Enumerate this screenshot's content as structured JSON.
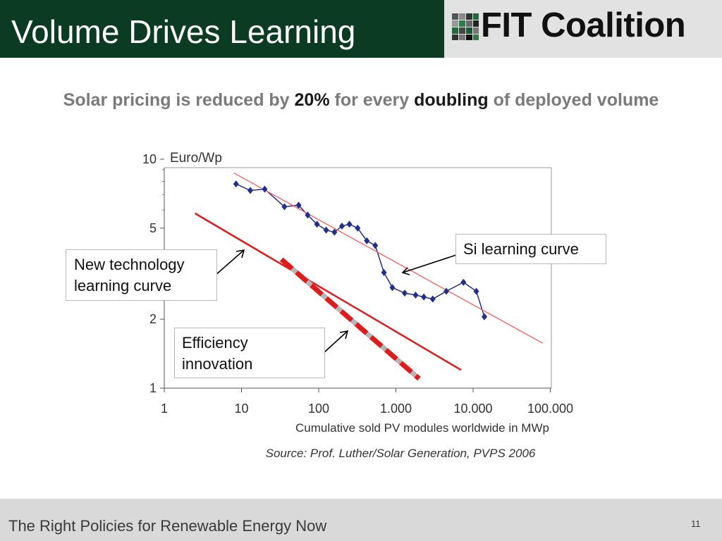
{
  "header": {
    "title": "Volume Drives Learning",
    "logo_text": "FIT Coalition",
    "logo_icon": "fit-grid-logo-icon"
  },
  "subtitle": {
    "part1": "Solar pricing is reduced by ",
    "highlight1": "20%",
    "part2": " for every ",
    "highlight2": "doubling",
    "part3": " of deployed volume"
  },
  "callouts": {
    "new_tech_line1": "New technology",
    "new_tech_line2": "learning curve",
    "efficiency_line1": "Efficiency",
    "efficiency_line2": "innovation",
    "si_curve": "Si learning curve"
  },
  "chart_data": {
    "type": "line",
    "ylabel": "Euro/Wp",
    "xlabel": "Cumulative sold PV modules worldwide in MWp",
    "x_scale": "log",
    "y_scale": "log",
    "xlim": [
      1,
      100000
    ],
    "ylim": [
      1,
      10
    ],
    "x_ticks": [
      1,
      10,
      100,
      1000,
      10000,
      100000
    ],
    "x_tick_labels": [
      "1",
      "10",
      "100",
      "1.000",
      "10.000",
      "100.000"
    ],
    "y_ticks": [
      1,
      2,
      5,
      10
    ],
    "y_tick_labels": [
      "1",
      "2",
      "5",
      "10"
    ],
    "source": "Source: Prof. Luther/Solar Generation, PVPS 2006",
    "series": [
      {
        "color": "#1f2f8a",
        "marker": "diamond",
        "points": [
          [
            8.5,
            7.8
          ],
          [
            13,
            7.3
          ],
          [
            20,
            7.4
          ],
          [
            36,
            6.2
          ],
          [
            55,
            6.3
          ],
          [
            72,
            5.7
          ],
          [
            95,
            5.2
          ],
          [
            125,
            4.9
          ],
          [
            160,
            4.8
          ],
          [
            200,
            5.1
          ],
          [
            250,
            5.2
          ],
          [
            320,
            5.0
          ],
          [
            420,
            4.4
          ],
          [
            540,
            4.2
          ],
          [
            700,
            3.2
          ],
          [
            900,
            2.75
          ],
          [
            1300,
            2.6
          ],
          [
            1800,
            2.55
          ],
          [
            2300,
            2.5
          ],
          [
            3000,
            2.45
          ],
          [
            4500,
            2.65
          ],
          [
            7500,
            2.9
          ],
          [
            11000,
            2.65
          ],
          [
            14000,
            2.05
          ]
        ]
      },
      {
        "color": "#ff5b5b",
        "style": "thin-trend",
        "points": [
          [
            8,
            8.7
          ],
          [
            80000,
            1.57
          ]
        ]
      },
      {
        "color": "#e11b1b",
        "style": "solid",
        "points": [
          [
            2.5,
            5.8
          ],
          [
            7000,
            1.2
          ]
        ]
      },
      {
        "color": "#e11b1b",
        "alt_color": "#b5b5b5",
        "style": "dashed",
        "points": [
          [
            33,
            3.65
          ],
          [
            2000,
            1.1
          ]
        ]
      }
    ]
  },
  "footer": {
    "text": "The Right Policies for Renewable Energy Now",
    "page_number": "11"
  }
}
